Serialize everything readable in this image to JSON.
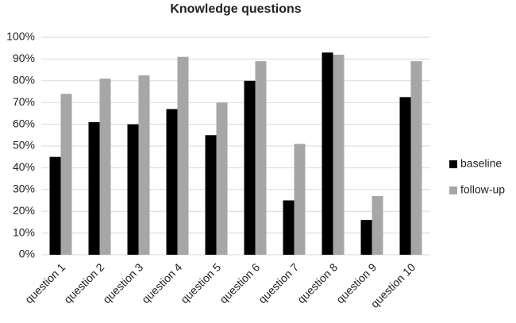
{
  "chart_data": {
    "type": "bar",
    "title": "Knowledge questions",
    "categories": [
      "question 1",
      "question 2",
      "question 3",
      "question 4",
      "question 5",
      "question 6",
      "question 7",
      "question 8",
      "question 9",
      "question 10"
    ],
    "series": [
      {
        "name": "baseline",
        "color": "#000000",
        "values": [
          45,
          61,
          60,
          67,
          55,
          80,
          25,
          93,
          16,
          72.5
        ]
      },
      {
        "name": "follow-up",
        "color": "#a6a6a6",
        "values": [
          74,
          81,
          82.5,
          91,
          70,
          89,
          51,
          92,
          27,
          89
        ]
      }
    ],
    "ylim": [
      0,
      100
    ],
    "yticks": [
      {
        "value": 0,
        "label": "0%"
      },
      {
        "value": 10,
        "label": "10%"
      },
      {
        "value": 20,
        "label": "20%"
      },
      {
        "value": 30,
        "label": "30%"
      },
      {
        "value": 40,
        "label": "40%"
      },
      {
        "value": 50,
        "label": "50%"
      },
      {
        "value": 60,
        "label": "60%"
      },
      {
        "value": 70,
        "label": "70%"
      },
      {
        "value": 80,
        "label": "80%"
      },
      {
        "value": 90,
        "label": "90%"
      },
      {
        "value": 100,
        "label": "100%"
      }
    ],
    "grid": true,
    "legend": "right"
  }
}
